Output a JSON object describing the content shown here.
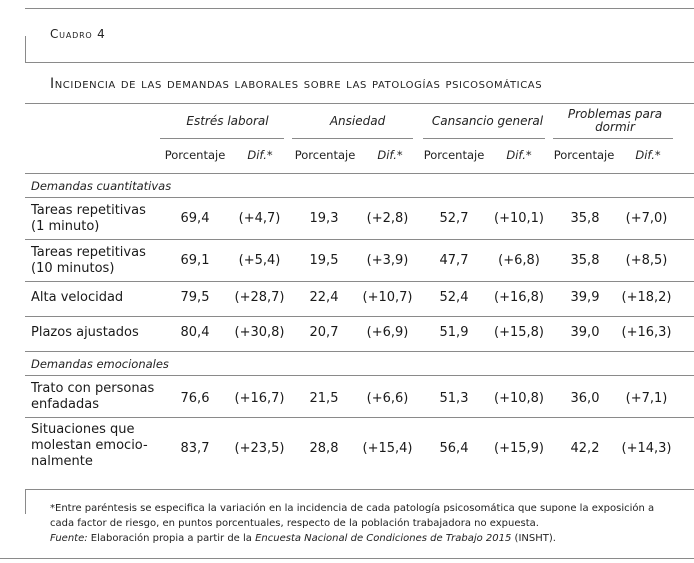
{
  "label": "Cuadro 4",
  "title": "Incidencia de las demandas laborales sobre las patologías psicosomáticas",
  "groups": [
    "Estrés laboral",
    "Ansiedad",
    "Cansancio general",
    "Problemas para dormir"
  ],
  "sub": {
    "pct": "Porcentaje",
    "dif": "Dif.*"
  },
  "sections": [
    "Demandas cuantitativas",
    "Demandas emocionales"
  ],
  "rows": [
    {
      "l1": "Tareas repetitivas",
      "l2": "(1 minuto)",
      "l3": "",
      "v": [
        "69,4",
        "(+4,7)",
        "19,3",
        "(+2,8)",
        "52,7",
        "(+10,1)",
        "35,8",
        "(+7,0)"
      ]
    },
    {
      "l1": "Tareas repetitivas",
      "l2": "(10 minutos)",
      "l3": "",
      "v": [
        "69,1",
        "(+5,4)",
        "19,5",
        "(+3,9)",
        "47,7",
        "(+6,8)",
        "35,8",
        "(+8,5)"
      ]
    },
    {
      "l1": "Alta velocidad",
      "l2": "",
      "l3": "",
      "v": [
        "79,5",
        "(+28,7)",
        "22,4",
        "(+10,7)",
        "52,4",
        "(+16,8)",
        "39,9",
        "(+18,2)"
      ]
    },
    {
      "l1": "Plazos ajustados",
      "l2": "",
      "l3": "",
      "v": [
        "80,4",
        "(+30,8)",
        "20,7",
        "(+6,9)",
        "51,9",
        "(+15,8)",
        "39,0",
        "(+16,3)"
      ]
    },
    {
      "l1": "Trato con personas",
      "l2": "enfadadas",
      "l3": "",
      "v": [
        "76,6",
        "(+16,7)",
        "21,5",
        "(+6,6)",
        "51,3",
        "(+10,8)",
        "36,0",
        "(+7,1)"
      ]
    },
    {
      "l1": "Situaciones que",
      "l2": "molestan emocio-",
      "l3": "nalmente",
      "v": [
        "83,7",
        "(+23,5)",
        "28,8",
        "(+15,4)",
        "56,4",
        "(+15,9)",
        "42,2",
        "(+14,3)"
      ]
    }
  ],
  "footnote": {
    "line1": "*Entre paréntesis se especifica la variación en la incidencia de cada patología psicosomática que supone la exposición a",
    "line2": "cada factor de riesgo, en puntos porcentuales, respecto de la población trabajadora no expuesta.",
    "source_label": "Fuente:",
    "source_pre": " Elaboración propia a partir de la ",
    "source_title": "Encuesta Nacional de Condiciones de Trabajo 2015",
    "source_post": " (INSHT)."
  }
}
